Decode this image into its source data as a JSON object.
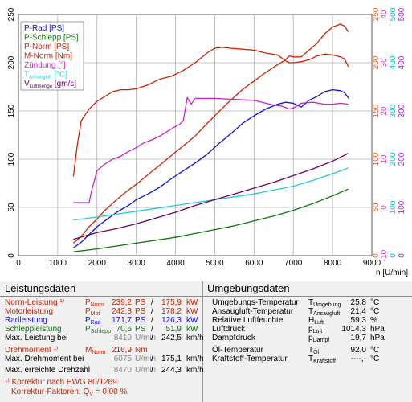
{
  "chart_data": {
    "type": "line",
    "x_label": "n [U/min]",
    "x_ticks": [
      "0",
      "1000",
      "2000",
      "3000",
      "4000",
      "5000",
      "6000",
      "7000",
      "8000",
      "9000"
    ],
    "xlim": [
      0,
      9000
    ],
    "left_axis_ticks": [
      "0",
      "50",
      "100",
      "150",
      "200",
      "250"
    ],
    "ylim_left": [
      0,
      250
    ],
    "right_axes": [
      {
        "name": "temp",
        "color": "#e0602a",
        "ticks": [
          "0",
          "50",
          "100",
          "150",
          "200",
          "250"
        ]
      },
      {
        "name": "zuendung",
        "color": "#cc33cc",
        "ticks": [
          "-10",
          "0",
          "10",
          "20",
          "30",
          "40"
        ]
      },
      {
        "name": "hum",
        "color": "#00bbcc",
        "ticks": [
          "0",
          "100",
          "200",
          "300",
          "400",
          "500"
        ]
      },
      {
        "name": "luftmenge",
        "color": "#9933cc",
        "ticks": [
          "0",
          "100",
          "200",
          "300",
          "400",
          "500"
        ]
      }
    ],
    "legend": [
      {
        "label": "P-Rad [PS]",
        "color": "#1010dd"
      },
      {
        "label": "P-Schlepp [PS]",
        "color": "#117711"
      },
      {
        "label": "P-Norm [PS]",
        "color": "#cc2200"
      },
      {
        "label": "M-Norm [Nm]",
        "color": "#cc2200"
      },
      {
        "label": "Zündung [°]",
        "color": "#cc22cc"
      },
      {
        "label": "T",
        "sub": "Ansaugluft",
        "suffix": " [°C]",
        "color": "#22cccc"
      },
      {
        "label": "V",
        "sub": "Luftmenge",
        "suffix": " [gm/s]",
        "color": "#660066"
      }
    ],
    "series": [
      {
        "name": "P-Rad",
        "color": "#1010dd",
        "axis": "left",
        "x": [
          1400,
          1600,
          1800,
          2000,
          2200,
          2500,
          2800,
          3000,
          3300,
          3600,
          3900,
          4200,
          4500,
          4800,
          5100,
          5400,
          5700,
          6000,
          6300,
          6600,
          6800,
          7000,
          7200,
          7400,
          7600,
          7800,
          8000,
          8200,
          8300,
          8410
        ],
        "y": [
          8,
          14,
          22,
          30,
          36,
          45,
          52,
          58,
          64,
          71,
          80,
          88,
          96,
          105,
          116,
          126,
          137,
          145,
          152,
          157,
          159,
          158,
          154,
          161,
          165,
          170,
          172,
          171,
          169,
          163
        ]
      },
      {
        "name": "P-Norm",
        "color": "#cc2200",
        "axis": "left",
        "x": [
          1400,
          1600,
          1800,
          2000,
          2200,
          2500,
          2800,
          3000,
          3300,
          3600,
          3900,
          4200,
          4500,
          4800,
          5100,
          5400,
          5700,
          6000,
          6300,
          6600,
          6800,
          6900,
          7000,
          7200,
          7400,
          7600,
          7800,
          8000,
          8200,
          8300,
          8400
        ],
        "y": [
          13,
          20,
          30,
          38,
          47,
          58,
          68,
          74,
          84,
          94,
          104,
          114,
          124,
          137,
          149,
          161,
          172,
          181,
          190,
          198,
          203,
          207,
          206,
          206,
          213,
          220,
          230,
          237,
          240,
          238,
          232
        ]
      },
      {
        "name": "M-Norm",
        "color": "#cc2200",
        "axis": "left",
        "x": [
          1400,
          1500,
          1600,
          1800,
          2000,
          2200,
          2400,
          2600,
          2800,
          3000,
          3300,
          3600,
          3900,
          4200,
          4500,
          4800,
          5000,
          5200,
          5400,
          5700,
          6000,
          6300,
          6600,
          6800,
          6900,
          7000,
          7200,
          7400,
          7600,
          7800,
          8000,
          8200,
          8300,
          8400
        ],
        "y": [
          82,
          115,
          140,
          152,
          160,
          165,
          170,
          172,
          172,
          173,
          177,
          183,
          186,
          192,
          200,
          210,
          215,
          216,
          215,
          214,
          213,
          210,
          208,
          202,
          200,
          200,
          201,
          203,
          207,
          209,
          208,
          206,
          204,
          196
        ]
      },
      {
        "name": "P-Schlepp",
        "color": "#117711",
        "axis": "left",
        "x": [
          1400,
          2000,
          2500,
          3000,
          3500,
          4000,
          4500,
          5000,
          5500,
          6000,
          6500,
          7000,
          7500,
          8000,
          8400
        ],
        "y": [
          4,
          7,
          10,
          13,
          16,
          19,
          23,
          27,
          31,
          36,
          41,
          47,
          54,
          62,
          69
        ]
      },
      {
        "name": "Zündung",
        "color": "#cc22cc",
        "axis": "left",
        "x": [
          1400,
          1800,
          1850,
          2000,
          2200,
          2400,
          2600,
          2800,
          3000,
          3200,
          3400,
          3600,
          3800,
          4000,
          4100,
          4200,
          4220,
          4300,
          4400,
          4500,
          4700,
          5000,
          5500,
          6000,
          6500,
          6700,
          6900,
          7000,
          7200,
          7500,
          7800,
          8000,
          8200,
          8400
        ],
        "y": [
          55,
          55,
          65,
          88,
          95,
          100,
          103,
          108,
          112,
          117,
          120,
          124,
          129,
          134,
          136,
          140,
          145,
          164,
          157,
          163,
          163,
          163,
          162,
          161,
          156,
          155,
          152,
          153,
          158,
          159,
          157,
          157,
          158,
          157
        ]
      },
      {
        "name": "T Ansaugluft",
        "color": "#22cccc",
        "axis": "left",
        "x": [
          1400,
          2000,
          2500,
          3000,
          3500,
          4000,
          4500,
          5000,
          5500,
          6000,
          6500,
          7000,
          7500,
          8000,
          8400
        ],
        "y": [
          37,
          40,
          43,
          46,
          49,
          52,
          55,
          58,
          61,
          64,
          68,
          72,
          78,
          85,
          91
        ]
      },
      {
        "name": "V Luftmenge",
        "color": "#660066",
        "axis": "left",
        "x": [
          1400,
          2000,
          2500,
          3000,
          3500,
          4000,
          4500,
          5000,
          5500,
          6000,
          6500,
          7000,
          7500,
          8000,
          8400
        ],
        "y": [
          17,
          24,
          28,
          33,
          39,
          45,
          52,
          58,
          64,
          70,
          76,
          83,
          90,
          98,
          106
        ]
      }
    ]
  },
  "left": {
    "header": "Leistungsdaten",
    "rows": [
      {
        "label": "Norm-Leistung ¹⁾",
        "sym": "P",
        "sub": "Norm",
        "v1": "239,2",
        "u1": "PS",
        "sep": "/",
        "v2": "175,9",
        "u2": "kW",
        "color": "#cc2200"
      },
      {
        "label": "Motorleistung",
        "sym": "P",
        "sub": "Mot",
        "v1": "242,3",
        "u1": "PS",
        "sep": "/",
        "v2": "178,2",
        "u2": "kW",
        "color": "#cc2200"
      },
      {
        "label": "Radleistung",
        "sym": "P",
        "sub": "Rad",
        "v1": "171,7",
        "u1": "PS",
        "sep": "/",
        "v2": "126,3",
        "u2": "kW",
        "color": "#1010dd"
      },
      {
        "label": "Schleppleistung",
        "sym": "P",
        "sub": "Schlepp",
        "v1": "70,6",
        "u1": "PS",
        "sep": "/",
        "v2": "51,9",
        "u2": "kW",
        "color": "#117711"
      },
      {
        "label": "Max. Leistung bei",
        "sym": "",
        "sub": "",
        "v1": "8410",
        "u1": "U/min",
        "sep": "/",
        "v2": "242,5",
        "u2": "km/h",
        "color": "#000000",
        "v1color": "#888888"
      }
    ],
    "rows2": [
      {
        "label": "Drehmoment ¹⁾",
        "sym": "M",
        "sub": "Norm",
        "v1": "216,9",
        "u1": "Nm",
        "sep": "",
        "v2": "",
        "u2": "",
        "color": "#cc2200"
      },
      {
        "label": "Max. Drehmoment bei",
        "sym": "",
        "sub": "",
        "v1": "6075",
        "u1": "U/min",
        "sep": "/",
        "v2": "175,1",
        "u2": "km/h",
        "color": "#000000",
        "v1color": "#888888"
      }
    ],
    "row3": {
      "label": "Max. erreichte Drehzahl",
      "v1": "8470",
      "u1": "U/min",
      "sep": "/",
      "v2": "244,3",
      "u2": "km/h"
    },
    "note1": "¹⁾ Korrektur nach EWG 80/1269",
    "note2_label": "Korrektur-Faktoren: Q",
    "note2_sub": "V",
    "note2_value": " =   0,00 %"
  },
  "right": {
    "header": "Umgebungsdaten",
    "rows": [
      {
        "label": "Umgebungs-Temperatur",
        "sym": "T",
        "sub": "Umgebung",
        "val": "25,8",
        "unit": "°C"
      },
      {
        "label": "Ansaugluft-Temperatur",
        "sym": "T",
        "sub": "Ansaugluft",
        "val": "21,4",
        "unit": "°C"
      },
      {
        "label": "Relative Luftfeuchte",
        "sym": "H",
        "sub": "Luft",
        "val": "59,3",
        "unit": "%"
      },
      {
        "label": "Luftdruck",
        "sym": "p",
        "sub": "Luft",
        "val": "1014,3",
        "unit": "hPa"
      },
      {
        "label": "Dampfdruck",
        "sym": "p",
        "sub": "Dampf",
        "val": "19,7",
        "unit": "hPa"
      }
    ],
    "rows2": [
      {
        "label": "Öl-Temperatur",
        "sym": "T",
        "sub": "Öl",
        "val": "92,0",
        "unit": "°C"
      },
      {
        "label": "Kraftstoff-Temperatur",
        "sym": "T",
        "sub": "Kraftstoff",
        "val": "----,-",
        "unit": "°C"
      }
    ]
  }
}
